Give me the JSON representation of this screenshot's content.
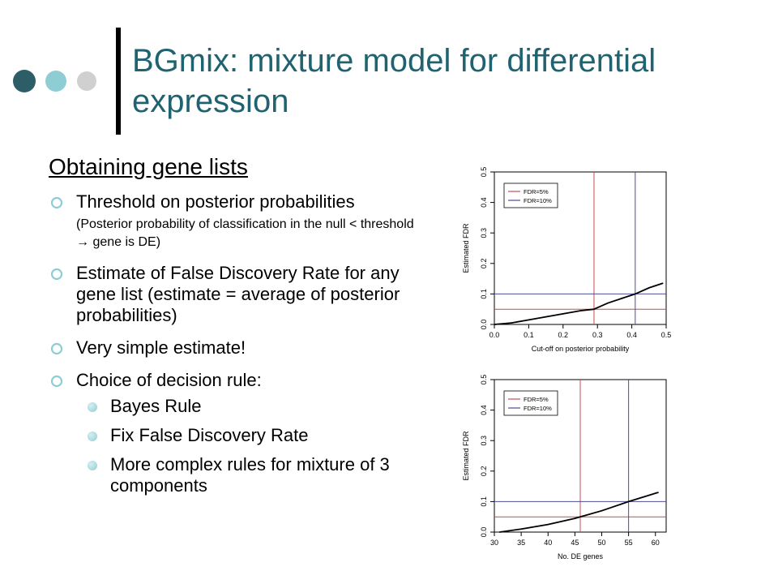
{
  "slide": {
    "title": "BGmix: mixture model for differential expression",
    "subtitle": "Obtaining gene lists",
    "colors": {
      "title": "#1f6370",
      "dot_dark": "#2d5e67",
      "dot_mid": "#8fcdd4",
      "dot_light": "#d0d0d0"
    }
  },
  "bullets": [
    {
      "text": "Threshold on posterior probabilities",
      "detail": "(Posterior probability of classification in the null < threshold → gene is DE)"
    },
    {
      "text": "Estimate of False Discovery Rate for any gene list  (estimate = average of posterior probabilities)"
    },
    {
      "text": "Very simple estimate!"
    },
    {
      "text": "Choice of decision rule:",
      "sub": [
        "Bayes Rule",
        "Fix False Discovery Rate",
        "More complex rules for mixture of 3 components"
      ]
    }
  ],
  "chart_data": [
    {
      "type": "line",
      "xlabel": "Cut-off on posterior probability",
      "ylabel": "Estimated FDR",
      "xlim": [
        0,
        0.5
      ],
      "ylim": [
        0,
        0.5
      ],
      "xticks": [
        "0.0",
        "0.1",
        "0.2",
        "0.3",
        "0.4",
        "0.5"
      ],
      "yticks": [
        "0.0",
        "0.1",
        "0.2",
        "0.3",
        "0.4",
        "0.5"
      ],
      "legend": {
        "placement": "top-left",
        "entries": [
          {
            "label": "FDR=5%",
            "color": "#c0504d"
          },
          {
            "label": "FDR=10%",
            "color": "#4b4b9a"
          }
        ]
      },
      "reference_lines": [
        {
          "label": "FDR=5%",
          "color": "#c0504d",
          "y": 0.05,
          "x": 0.29
        },
        {
          "label": "FDR=10%",
          "color": "#4b4b9a",
          "y": 0.1,
          "x": 0.41
        }
      ],
      "series": [
        {
          "x": [
            0.0,
            0.05,
            0.1,
            0.15,
            0.2,
            0.25,
            0.29,
            0.33,
            0.37,
            0.41,
            0.45,
            0.49
          ],
          "y": [
            0.0,
            0.005,
            0.015,
            0.025,
            0.035,
            0.045,
            0.05,
            0.07,
            0.085,
            0.1,
            0.12,
            0.135
          ]
        }
      ]
    },
    {
      "type": "line",
      "xlabel": "No. DE genes",
      "ylabel": "Estimated FDR",
      "xlim": [
        30,
        62
      ],
      "ylim": [
        0,
        0.5
      ],
      "xticks": [
        "30",
        "35",
        "40",
        "45",
        "50",
        "55",
        "60"
      ],
      "yticks": [
        "0.0",
        "0.1",
        "0.2",
        "0.3",
        "0.4",
        "0.5"
      ],
      "legend": {
        "placement": "top-left",
        "entries": [
          {
            "label": "FDR=5%",
            "color": "#c0504d"
          },
          {
            "label": "FDR=10%",
            "color": "#4b4b9a"
          }
        ]
      },
      "reference_lines": [
        {
          "label": "FDR=5%",
          "color": "#c0504d",
          "y": 0.05,
          "x": 46
        },
        {
          "label": "FDR=10%",
          "color": "#4b4b9a",
          "y": 0.1,
          "x": 55
        }
      ],
      "series": [
        {
          "x": [
            31,
            35,
            40,
            45,
            50,
            55,
            60.5
          ],
          "y": [
            0.0,
            0.01,
            0.025,
            0.045,
            0.07,
            0.1,
            0.13
          ]
        }
      ]
    }
  ]
}
